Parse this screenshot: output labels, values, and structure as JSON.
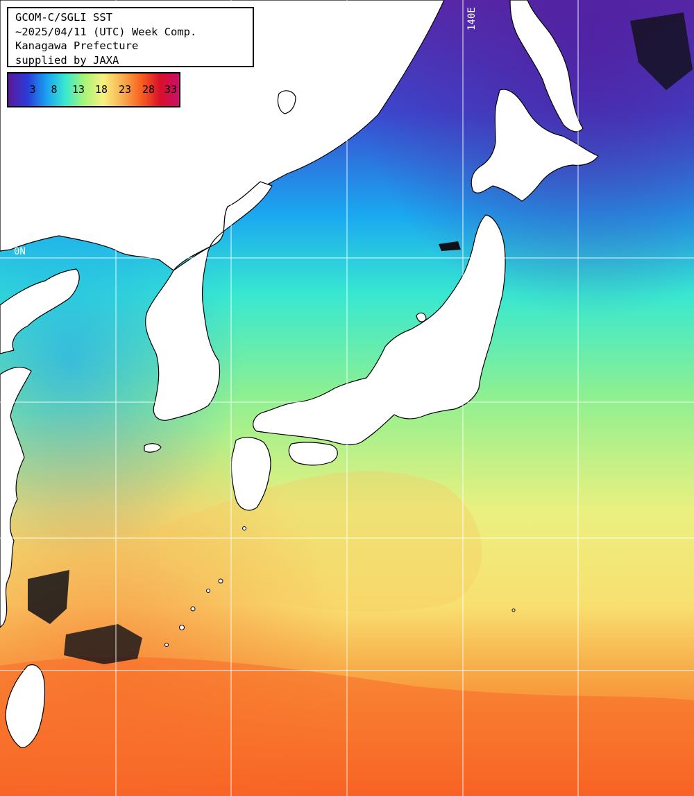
{
  "info": {
    "line1": "GCOM-C/SGLI SST",
    "line2": "~2025/04/11 (UTC) Week Comp.",
    "line3": "Kanagawa Prefecture",
    "line4": "supplied by JAXA"
  },
  "legend": {
    "labels": [
      "3",
      "8",
      "13",
      "18",
      "23",
      "28",
      "33"
    ],
    "colors": [
      "#5a1a9a",
      "#2a3ad8",
      "#1aa0f0",
      "#38e8d0",
      "#a8f478",
      "#f8f080",
      "#f8b050",
      "#f86020",
      "#d8102a",
      "#c81068"
    ]
  },
  "grid": {
    "lon_label": "140E",
    "lat_label": "0N"
  },
  "colors": {
    "land": "#ffffff",
    "grid_line": "#ffffff",
    "coast": "#000000",
    "cloud_mask": "#101018"
  }
}
